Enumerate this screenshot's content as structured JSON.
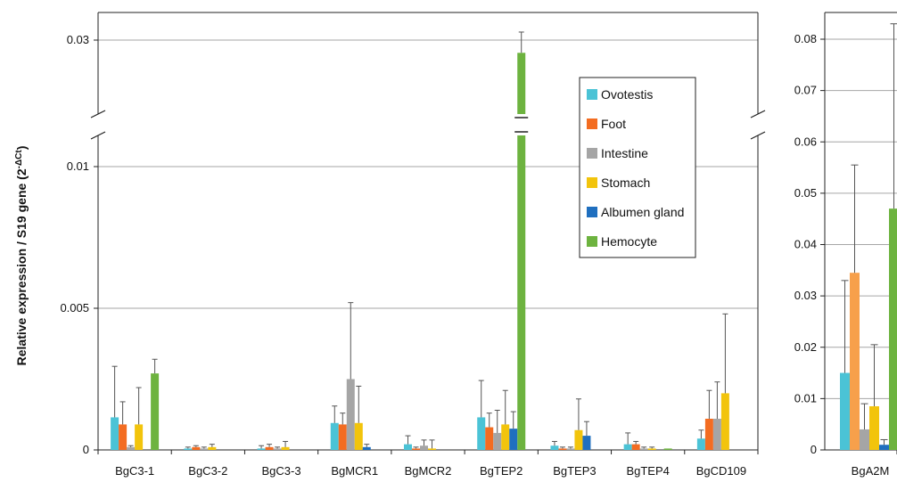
{
  "chart_data": [
    {
      "type": "bar",
      "categories": [
        "BgC3-1",
        "BgC3-2",
        "BgC3-3",
        "BgMCR1",
        "BgMCR2",
        "BgTEP2",
        "BgTEP3",
        "BgTEP4",
        "BgCD109"
      ],
      "ylabel": {
        "main": "Relative expression / S19 gene (2",
        "superscript": "-ΔCt",
        "close": ")"
      },
      "yticks": [
        "0",
        "0.005",
        "0.01",
        "0.03"
      ],
      "ytick_values": [
        0,
        0.005,
        0.01,
        0.03
      ],
      "axis_break": true,
      "ylim": [
        0,
        0.034
      ],
      "grid": true,
      "legend_placement": "top-right",
      "series": [
        {
          "name": "Ovotestis",
          "color": "#4bc3d6",
          "values": [
            0.00115,
            5e-05,
            5e-05,
            0.00095,
            0.0002,
            0.00115,
            0.00015,
            0.0002,
            0.0004
          ],
          "errors": [
            0.0018,
            5e-05,
            0.0001,
            0.0006,
            0.0003,
            0.0013,
            0.00015,
            0.0004,
            0.0003
          ]
        },
        {
          "name": "Foot",
          "color": "#f36c21",
          "values": [
            0.0009,
            0.0001,
            0.0001,
            0.0009,
            5e-05,
            0.0008,
            5e-05,
            0.0002,
            0.0011
          ],
          "errors": [
            0.0008,
            5e-05,
            0.0001,
            0.0004,
            5e-05,
            0.0005,
            5e-05,
            0.0001,
            0.001
          ]
        },
        {
          "name": "Intestine",
          "color": "#a5a5a5",
          "values": [
            0.0001,
            5e-05,
            5e-05,
            0.0025,
            0.00015,
            0.0006,
            5e-05,
            5e-05,
            0.0011
          ],
          "errors": [
            5e-05,
            5e-05,
            5e-05,
            0.0027,
            0.0002,
            0.0008,
            5e-05,
            5e-05,
            0.0013
          ]
        },
        {
          "name": "Stomach",
          "color": "#f2c40c",
          "values": [
            0.0009,
            0.0001,
            0.0001,
            0.00095,
            5e-05,
            0.0009,
            0.0007,
            5e-05,
            0.002
          ],
          "errors": [
            0.0013,
            0.0001,
            0.0002,
            0.0013,
            0.0003,
            0.0012,
            0.0011,
            5e-05,
            0.0028
          ]
        },
        {
          "name": "Albumen gland",
          "color": "#1f6fbf",
          "values": [
            0,
            0,
            0,
            0.0001,
            0,
            0.00075,
            0.0005,
            0,
            0
          ],
          "errors": [
            0,
            0,
            0,
            0.0001,
            0,
            0.0006,
            0.0005,
            0,
            0
          ]
        },
        {
          "name": "Hemocyte",
          "color": "#6db33f",
          "values": [
            0.0027,
            0,
            0,
            0,
            0,
            0.0235,
            0,
            5e-05,
            0
          ],
          "errors": [
            0.0005,
            0,
            0,
            0,
            0,
            0.0106,
            0,
            0,
            0
          ]
        }
      ]
    },
    {
      "type": "bar",
      "categories": [
        "BgA2M"
      ],
      "yticks": [
        "0",
        "0.01",
        "0.02",
        "0.03",
        "0.04",
        "0.05",
        "0.06",
        "0.07",
        "0.08"
      ],
      "ylim": [
        0,
        0.085
      ],
      "grid": true,
      "series": [
        {
          "name": "Ovotestis",
          "color": "#4bc3d6",
          "values": [
            0.015
          ],
          "errors": [
            0.018
          ]
        },
        {
          "name": "Foot",
          "color": "#f7a04b",
          "values": [
            0.0345
          ],
          "errors": [
            0.021
          ]
        },
        {
          "name": "Intestine",
          "color": "#a5a5a5",
          "values": [
            0.004
          ],
          "errors": [
            0.005
          ]
        },
        {
          "name": "Stomach",
          "color": "#f2c40c",
          "values": [
            0.0085
          ],
          "errors": [
            0.012
          ]
        },
        {
          "name": "Albumen gland",
          "color": "#1f6fbf",
          "values": [
            0.001
          ],
          "errors": [
            0.001
          ]
        },
        {
          "name": "Hemocyte",
          "color": "#6db33f",
          "values": [
            0.047
          ],
          "errors": [
            0.036
          ]
        }
      ]
    }
  ]
}
